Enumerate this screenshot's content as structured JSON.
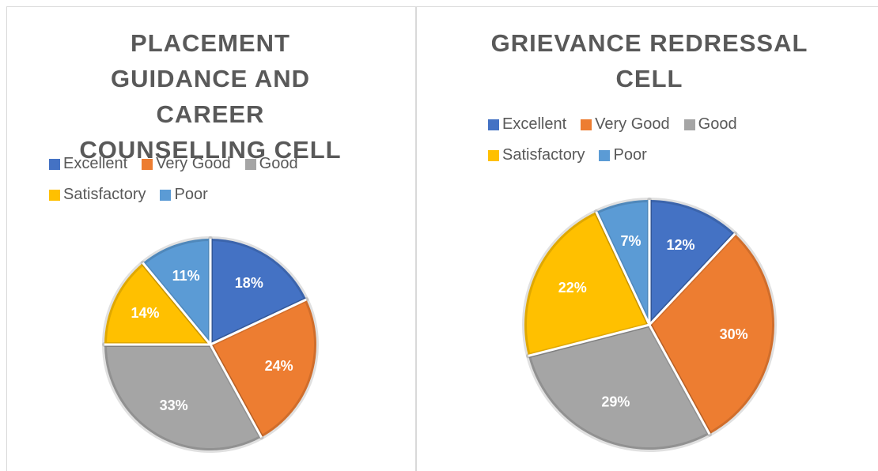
{
  "chart_data": [
    {
      "type": "pie",
      "title": "PLACEMENT GUIDANCE AND CAREER COUNSELLING CELL",
      "categories": [
        "Excellent",
        "Very Good",
        "Good",
        "Satisfactory",
        "Poor"
      ],
      "values": [
        18,
        24,
        33,
        14,
        11
      ],
      "value_labels": [
        "18%",
        "24%",
        "33%",
        "14%",
        "11%"
      ],
      "colors": [
        "#4472c4",
        "#ed7d31",
        "#a5a5a5",
        "#ffc000",
        "#5b9bd5"
      ]
    },
    {
      "type": "pie",
      "title": "GRIEVANCE REDRESSAL CELL",
      "categories": [
        "Excellent",
        "Very Good",
        "Good",
        "Satisfactory",
        "Poor"
      ],
      "values": [
        12,
        30,
        29,
        22,
        7
      ],
      "value_labels": [
        "12%",
        "30%",
        "29%",
        "22%",
        "7%"
      ],
      "colors": [
        "#4472c4",
        "#ed7d31",
        "#a5a5a5",
        "#ffc000",
        "#5b9bd5"
      ]
    }
  ]
}
